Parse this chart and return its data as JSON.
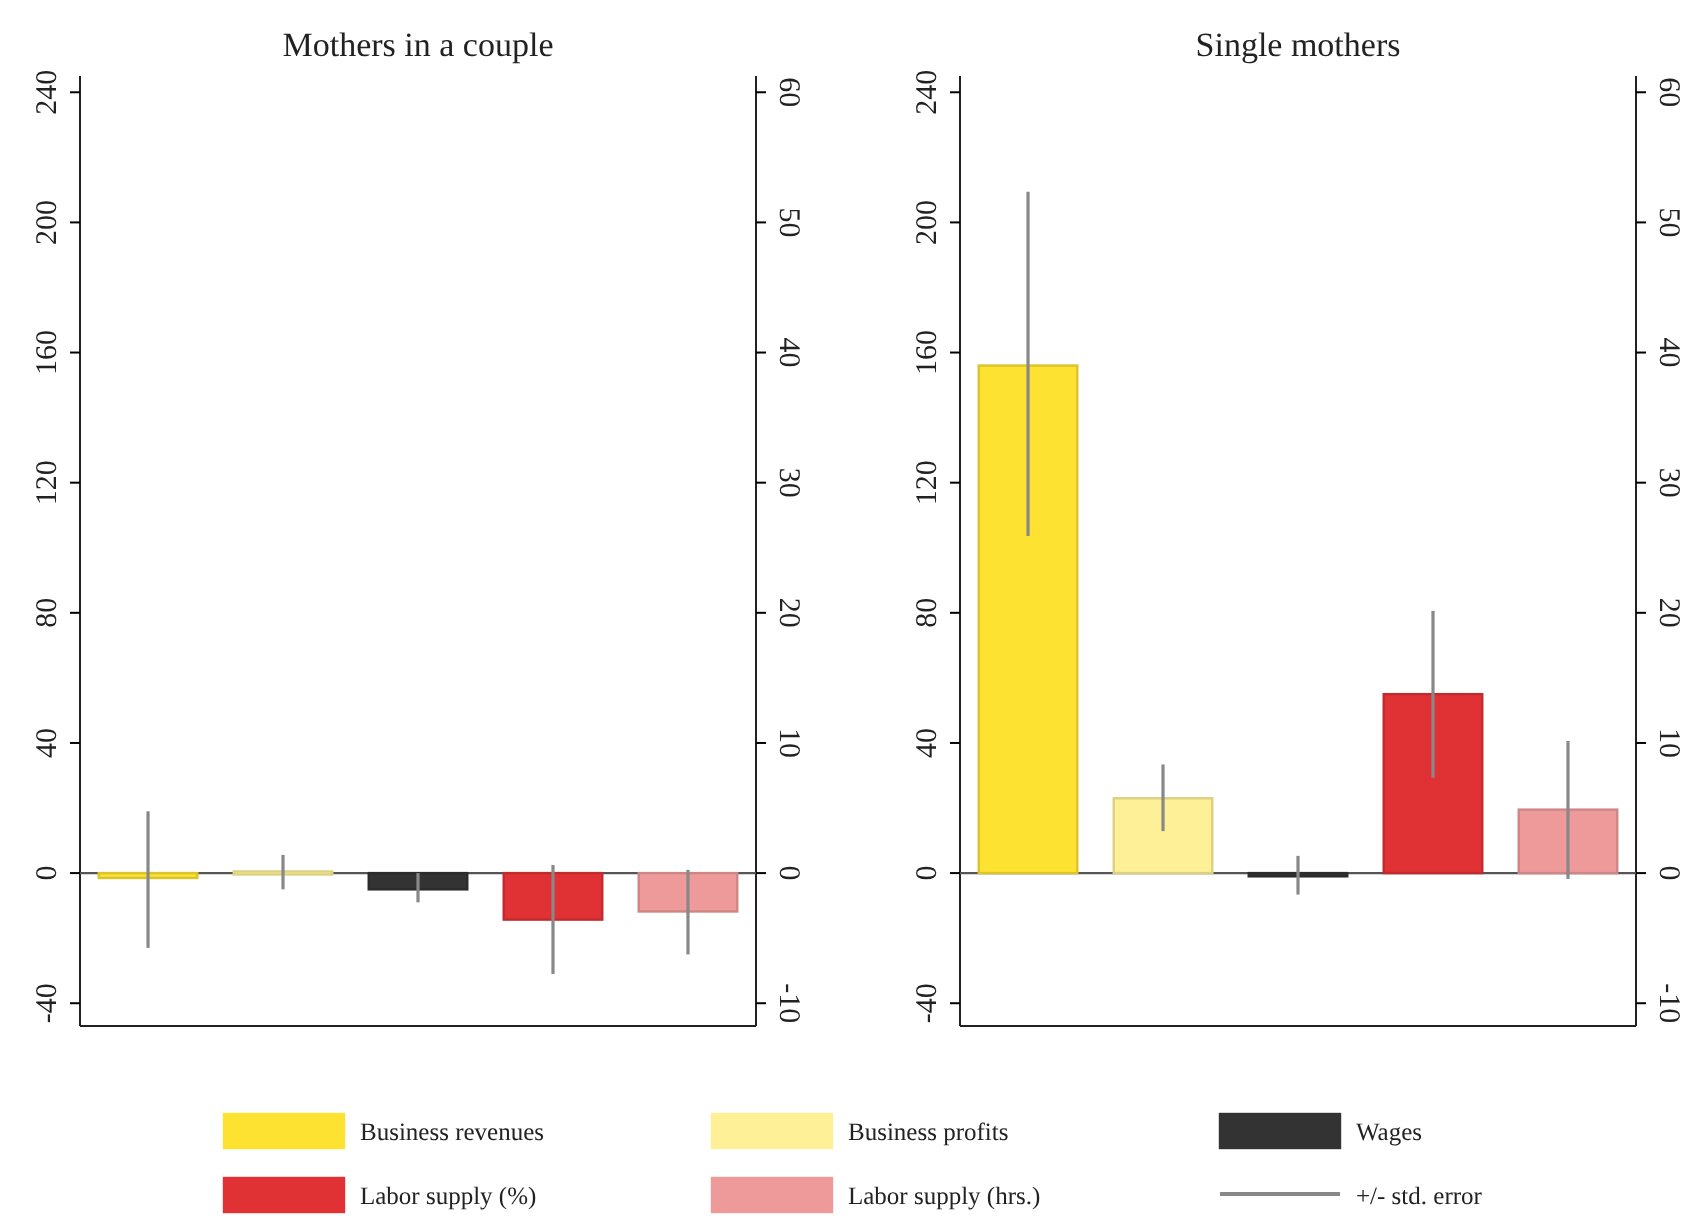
{
  "chart_data": [
    {
      "type": "bar",
      "title": "Mothers in a couple",
      "categories": [
        null,
        null,
        null,
        null,
        null
      ],
      "series": [
        {
          "name": "Business revenues",
          "color": "#fde232",
          "values": [
            -1.5,
            null,
            null,
            null,
            null
          ],
          "errors": [
            [
              -23,
              19
            ],
            null,
            null,
            null,
            null
          ]
        },
        {
          "name": "Business profits",
          "color": "#fef096",
          "values": [
            null,
            0.5,
            null,
            null,
            null
          ],
          "errors": [
            null,
            [
              -5,
              5.6
            ],
            null,
            null,
            null
          ]
        },
        {
          "name": "Wages",
          "color": "#333333",
          "values": [
            null,
            null,
            -5,
            null,
            null
          ],
          "errors": [
            null,
            null,
            [
              -9,
              0
            ],
            null,
            null
          ]
        },
        {
          "name": "Labor supply (%)",
          "color": "#e03235",
          "values": [
            null,
            null,
            null,
            -14.3,
            null
          ],
          "errors": [
            null,
            null,
            null,
            [
              -31,
              2.5
            ],
            null
          ]
        },
        {
          "name": "Labor supply (hrs.)",
          "color": "#ef9a9a",
          "values": [
            null,
            null,
            null,
            null,
            -11.8
          ],
          "errors": [
            null,
            null,
            null,
            null,
            [
              -25,
              1
            ]
          ]
        }
      ],
      "ylim": [
        -47,
        245
      ],
      "yticks": [
        -40,
        0,
        40,
        80,
        120,
        160,
        200,
        240
      ],
      "y2lim": [
        -11.75,
        61.25
      ],
      "y2ticks": [
        -10,
        0,
        10,
        20,
        30,
        40,
        50,
        60
      ],
      "legend": "bottom",
      "annotations": [
        "+/- std. error"
      ]
    },
    {
      "type": "bar",
      "title": "Single mothers",
      "categories": [
        null,
        null,
        null,
        null,
        null
      ],
      "series": [
        {
          "name": "Business revenues",
          "color": "#fde232",
          "values": [
            156,
            null,
            null,
            null,
            null
          ],
          "errors": [
            [
              103.6,
              209.4
            ],
            null,
            null,
            null,
            null
          ]
        },
        {
          "name": "Business profits",
          "color": "#fef096",
          "values": [
            null,
            23,
            null,
            null,
            null
          ],
          "errors": [
            null,
            [
              12.9,
              33.4
            ],
            null,
            null,
            null
          ]
        },
        {
          "name": "Wages",
          "color": "#333333",
          "values": [
            null,
            null,
            -1,
            null,
            null
          ],
          "errors": [
            null,
            null,
            [
              -6.6,
              5.3
            ],
            null,
            null
          ]
        },
        {
          "name": "Labor supply (%)",
          "color": "#e03235",
          "values": [
            null,
            null,
            null,
            55,
            null
          ],
          "errors": [
            null,
            null,
            null,
            [
              29.3,
              80.6
            ],
            null
          ]
        },
        {
          "name": "Labor supply (hrs.)",
          "color": "#ef9a9a",
          "values": [
            null,
            null,
            null,
            null,
            19.5
          ],
          "errors": [
            null,
            null,
            null,
            null,
            [
              -1.8,
              40.6
            ]
          ]
        }
      ],
      "ylim": [
        -47,
        245
      ],
      "yticks": [
        -40,
        0,
        40,
        80,
        120,
        160,
        200,
        240
      ],
      "y2lim": [
        -11.75,
        61.25
      ],
      "y2ticks": [
        -10,
        0,
        10,
        20,
        30,
        40,
        50,
        60
      ],
      "legend": "bottom"
    }
  ]
}
